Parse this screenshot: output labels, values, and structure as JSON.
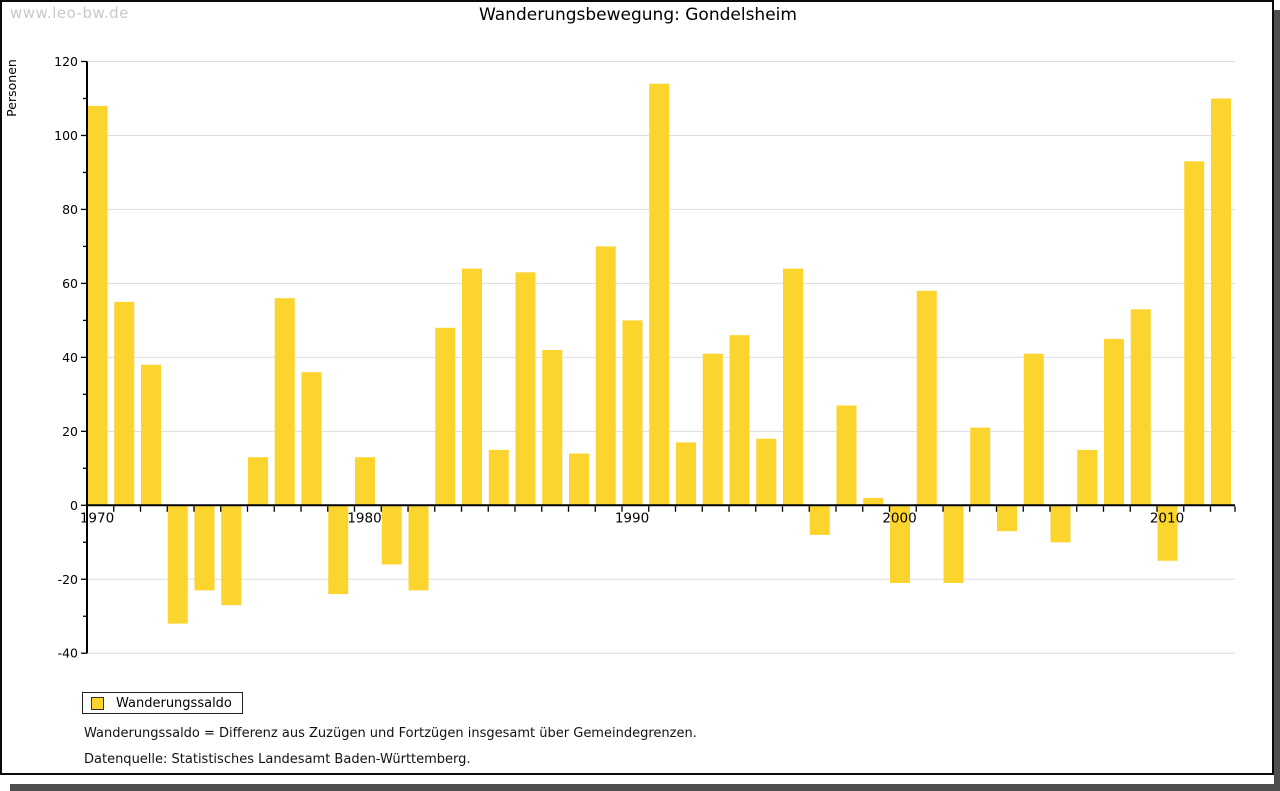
{
  "watermark": "www.leo-bw.de",
  "header": {
    "title": "Wanderungsbewegung: Gondelsheim"
  },
  "legend": {
    "label": "Wanderungssaldo"
  },
  "footnotes": {
    "definition": "Wanderungssaldo = Differenz aus Zuzügen und Fortzügen insgesamt über Gemeindegrenzen.",
    "source": "Datenquelle: Statistisches Landesamt Baden-Württemberg."
  },
  "colors": {
    "bar": "#fcd42e",
    "grid": "#dddddd",
    "axis": "#000000",
    "shadow": "#4f4f4f",
    "watermark": "#c9c9c9"
  },
  "chart_data": {
    "type": "bar",
    "title": "Wanderungsbewegung: Gondelsheim",
    "xlabel": "",
    "ylabel": "Personen",
    "ylim": [
      -40,
      120
    ],
    "ytick_step": 20,
    "yticks": [
      -40,
      -20,
      0,
      20,
      40,
      60,
      80,
      100,
      120
    ],
    "grid": true,
    "legend_position": "bottom-left",
    "categories": [
      1970,
      1971,
      1972,
      1973,
      1974,
      1975,
      1976,
      1977,
      1978,
      1979,
      1980,
      1981,
      1982,
      1983,
      1984,
      1985,
      1986,
      1987,
      1988,
      1989,
      1990,
      1991,
      1992,
      1993,
      1994,
      1995,
      1996,
      1997,
      1998,
      1999,
      2000,
      2001,
      2002,
      2003,
      2004,
      2005,
      2006,
      2007,
      2008,
      2009,
      2010,
      2011,
      2012
    ],
    "xtick_labels": [
      "1970",
      "1980",
      "1990",
      "2000",
      "2010"
    ],
    "series": [
      {
        "name": "Wanderungssaldo",
        "values": [
          108,
          55,
          38,
          -32,
          -23,
          -27,
          13,
          56,
          36,
          -24,
          13,
          -16,
          -23,
          48,
          64,
          15,
          63,
          42,
          14,
          70,
          50,
          114,
          17,
          41,
          46,
          18,
          64,
          -8,
          27,
          2,
          -21,
          58,
          -21,
          21,
          -7,
          41,
          -10,
          15,
          45,
          53,
          -15,
          93,
          110
        ]
      }
    ]
  }
}
